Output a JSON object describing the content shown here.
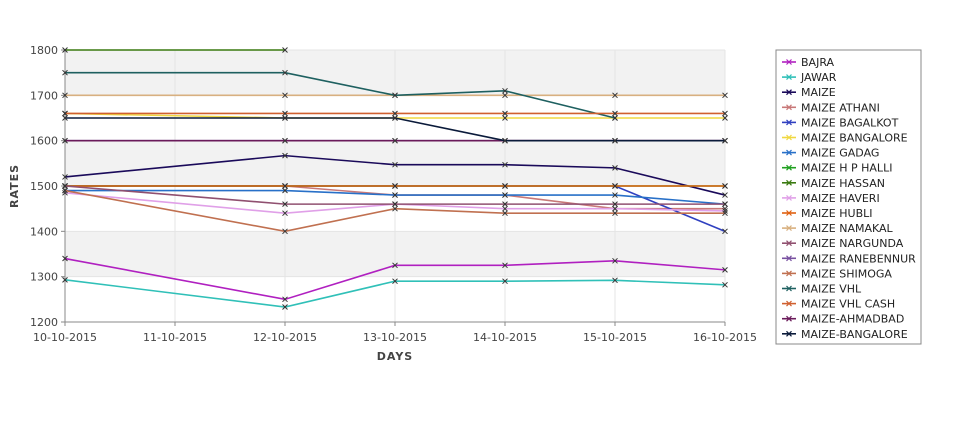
{
  "chart_data": {
    "type": "line",
    "xlabel": "DAYS",
    "ylabel": "RATES",
    "ylim": [
      1200,
      1800
    ],
    "y_ticks": [
      1200,
      1300,
      1400,
      1500,
      1600,
      1700,
      1800
    ],
    "x": [
      "10-10-2015",
      "11-10-2015",
      "12-10-2015",
      "13-10-2015",
      "14-10-2015",
      "15-10-2015",
      "16-10-2015"
    ],
    "grid": "bands",
    "legend_position": "right",
    "series": [
      {
        "name": "BAJRA",
        "color": "#b020c0",
        "values": [
          1340,
          null,
          1250,
          1325,
          1325,
          1335,
          1315
        ]
      },
      {
        "name": "JAWAR",
        "color": "#30c0b8",
        "values": [
          1293,
          null,
          1233,
          1290,
          1290,
          1292,
          1282
        ]
      },
      {
        "name": "MAIZE",
        "color": "#1a0a5a",
        "values": [
          1520,
          null,
          1567,
          1547,
          1547,
          1540,
          1480
        ]
      },
      {
        "name": "MAIZE ATHANI",
        "color": "#c87878",
        "values": [
          1500,
          null,
          1500,
          1480,
          1480,
          1450,
          1450
        ]
      },
      {
        "name": "MAIZE BAGALKOT",
        "color": "#3040c0",
        "values": [
          1500,
          null,
          1500,
          1500,
          1500,
          1500,
          1400
        ]
      },
      {
        "name": "MAIZE BANGALORE",
        "color": "#f0d840",
        "values": [
          1660,
          null,
          1650,
          1650,
          1650,
          1650,
          1650
        ]
      },
      {
        "name": "MAIZE GADAG",
        "color": "#2870c8",
        "values": [
          1490,
          null,
          1490,
          1480,
          1480,
          1480,
          1460
        ]
      },
      {
        "name": "MAIZE H P HALLI",
        "color": "#20a020",
        "values": [
          1500,
          null,
          1500,
          1500,
          1500,
          1500,
          1500
        ]
      },
      {
        "name": "MAIZE HASSAN",
        "color": "#3a7a10",
        "values": [
          1800,
          null,
          1800,
          null,
          null,
          null,
          null
        ]
      },
      {
        "name": "MAIZE HAVERI",
        "color": "#e0a0e8",
        "values": [
          1485,
          null,
          1440,
          1460,
          1450,
          1450,
          1445
        ]
      },
      {
        "name": "MAIZE HUBLI",
        "color": "#e06010",
        "values": [
          1500,
          null,
          1500,
          1500,
          1500,
          1500,
          1500
        ]
      },
      {
        "name": "MAIZE NAMAKAL",
        "color": "#d8b080",
        "values": [
          1700,
          null,
          1700,
          1700,
          1700,
          1700,
          1700
        ]
      },
      {
        "name": "MAIZE NARGUNDA",
        "color": "#905070",
        "values": [
          1500,
          null,
          1460,
          1460,
          1460,
          1460,
          1460
        ]
      },
      {
        "name": "MAIZE RANEBENNUR",
        "color": "#7850a0",
        "values": [
          1600,
          null,
          1600,
          1600,
          1600,
          1600,
          1600
        ]
      },
      {
        "name": "MAIZE SHIMOGA",
        "color": "#c07050",
        "values": [
          1490,
          null,
          1400,
          1450,
          1440,
          1440,
          1440
        ]
      },
      {
        "name": "MAIZE VHL",
        "color": "#1e6060",
        "values": [
          1750,
          null,
          1750,
          1700,
          1710,
          1650,
          null
        ]
      },
      {
        "name": "MAIZE VHL CASH",
        "color": "#d06030",
        "values": [
          1660,
          null,
          1660,
          1660,
          1660,
          1660,
          1660
        ]
      },
      {
        "name": "MAIZE-AHMADBAD",
        "color": "#6a1a5a",
        "values": [
          1600,
          null,
          1600,
          1600,
          1600,
          1600,
          1600
        ]
      },
      {
        "name": "MAIZE-BANGALORE",
        "color": "#0a1a3a",
        "values": [
          1650,
          null,
          1650,
          1650,
          1600,
          1600,
          1600
        ]
      }
    ]
  }
}
